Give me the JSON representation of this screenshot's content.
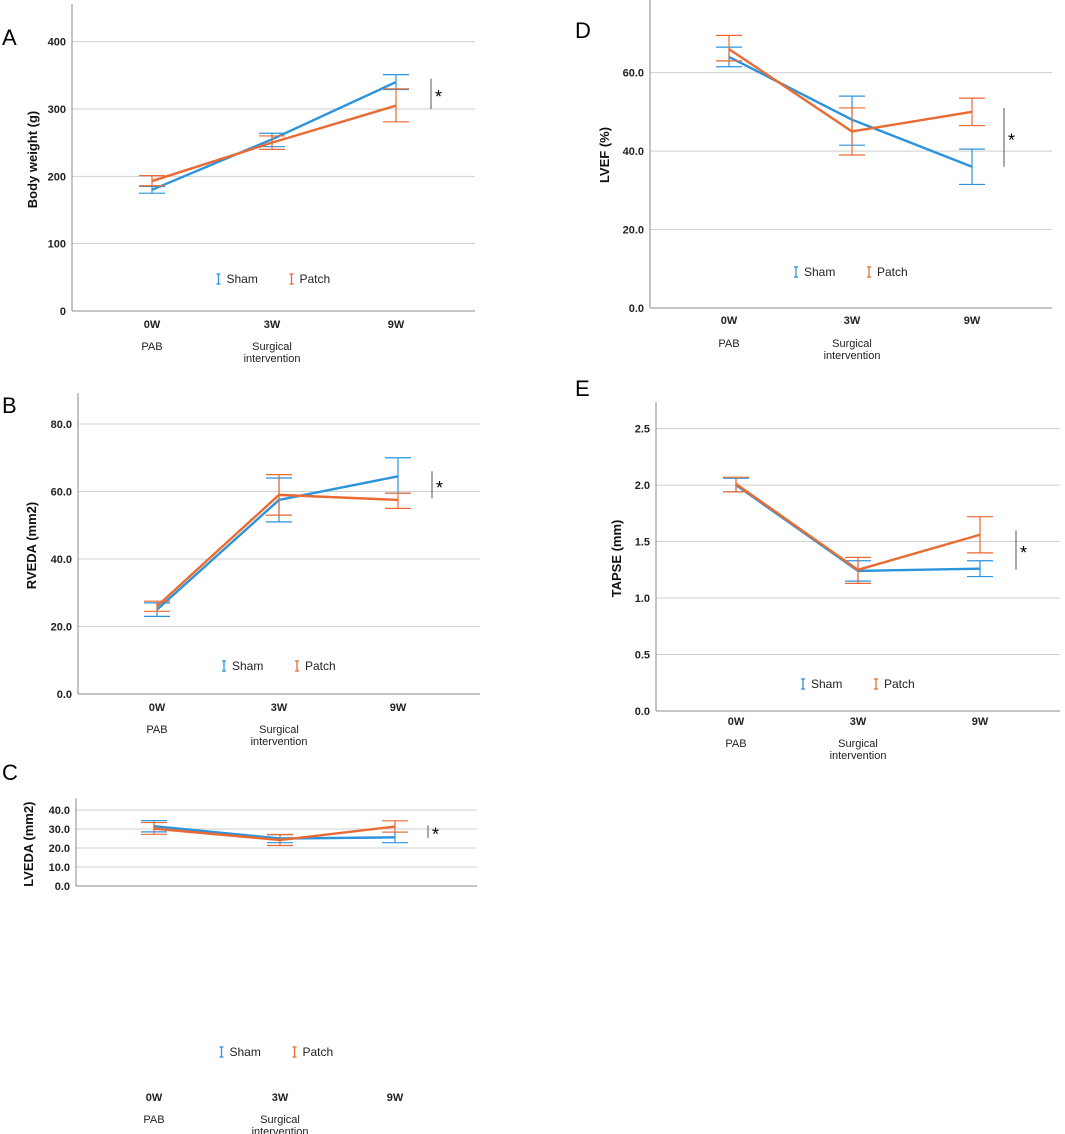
{
  "legend": {
    "sham": "Sham",
    "patch": "Patch",
    "sham_glyph": "I",
    "patch_glyph": "I"
  },
  "colors": {
    "sham": "#2b94dc",
    "patch": "#ea6a33",
    "grid": "#cfcfcf",
    "axis": "#8a8a8a"
  },
  "x_labels": [
    "0W",
    "3W",
    "9W"
  ],
  "x_sublabels": [
    "PAB",
    "Surgical\nintervention",
    ""
  ],
  "significance": "*",
  "chart_data": [
    {
      "panel": "A",
      "type": "line",
      "ylabel": "Body weight (g)",
      "categories": [
        "0W",
        "3W",
        "9W"
      ],
      "ylim": [
        0,
        450
      ],
      "yticks": [
        0,
        100,
        200,
        300,
        400
      ],
      "ytick_labels": [
        "0",
        "100",
        "200",
        "300",
        "400"
      ],
      "series": [
        {
          "name": "Sham",
          "values": [
            180,
            255,
            340
          ],
          "err_low": [
            175,
            244,
            329
          ],
          "err_high": [
            185,
            264,
            351
          ]
        },
        {
          "name": "Patch",
          "values": [
            193,
            250,
            305
          ],
          "err_low": [
            186,
            240,
            281
          ],
          "err_high": [
            201,
            260,
            330
          ]
        }
      ],
      "significance_range": [
        300,
        345
      ]
    },
    {
      "panel": "B",
      "type": "line",
      "ylabel": "RVEDA (mm2)",
      "categories": [
        "0W",
        "3W",
        "9W"
      ],
      "ylim": [
        0,
        88
      ],
      "yticks": [
        0,
        20,
        40,
        60,
        80
      ],
      "ytick_labels": [
        "0.0",
        "20.0",
        "40.0",
        "60.0",
        "80.0"
      ],
      "series": [
        {
          "name": "Sham",
          "values": [
            25,
            57.5,
            64.5
          ],
          "err_low": [
            23,
            51,
            59.5
          ],
          "err_high": [
            27,
            64,
            70
          ]
        },
        {
          "name": "Patch",
          "values": [
            26,
            59,
            57.5
          ],
          "err_low": [
            24.5,
            53,
            55
          ],
          "err_high": [
            27.5,
            65,
            59.5
          ]
        }
      ],
      "significance_range": [
        58,
        66
      ]
    },
    {
      "panel": "C",
      "type": "line",
      "ylabel": "LVEDA (mm2)",
      "categories": [
        "0W",
        "3W",
        "9W"
      ],
      "ylim": [
        0,
        44
      ],
      "yticks": [
        0,
        10,
        20,
        30,
        40
      ],
      "ytick_labels": [
        "0.0",
        "10.0",
        "20.0",
        "30.0",
        "40.0"
      ],
      "series": [
        {
          "name": "Sham",
          "values": [
            31.5,
            25,
            25.6
          ],
          "err_low": [
            28.5,
            22.8,
            22.8
          ],
          "err_high": [
            34.4,
            27,
            28.4
          ]
        },
        {
          "name": "Patch",
          "values": [
            30.2,
            24.2,
            31.3
          ],
          "err_low": [
            27.2,
            21.3,
            28.4
          ],
          "err_high": [
            33.4,
            27.1,
            34.3
          ]
        }
      ],
      "significance_range": [
        25.3,
        32
      ]
    },
    {
      "panel": "D",
      "type": "line",
      "ylabel": "LVEF (%)",
      "categories": [
        "0W",
        "3W",
        "9W"
      ],
      "ylim": [
        0,
        78
      ],
      "yticks": [
        0,
        20,
        40,
        60
      ],
      "ytick_labels": [
        "0.0",
        "20.0",
        "40.0",
        "60.0"
      ],
      "series": [
        {
          "name": "Sham",
          "values": [
            64,
            48,
            36
          ],
          "err_low": [
            61.5,
            41.5,
            31.5
          ],
          "err_high": [
            66.5,
            54,
            40.5
          ]
        },
        {
          "name": "Patch",
          "values": [
            66,
            45,
            50
          ],
          "err_low": [
            63,
            39,
            46.5
          ],
          "err_high": [
            69.5,
            51,
            53.5
          ]
        }
      ],
      "significance_range": [
        36,
        51
      ]
    },
    {
      "panel": "E",
      "type": "line",
      "ylabel": "TAPSE (mm)",
      "categories": [
        "0W",
        "3W",
        "9W"
      ],
      "ylim": [
        0,
        2.7
      ],
      "yticks": [
        0,
        0.5,
        1.0,
        1.5,
        2.0,
        2.5
      ],
      "ytick_labels": [
        "0.0",
        "0.5",
        "1.0",
        "1.5",
        "2.0",
        "2.5"
      ],
      "series": [
        {
          "name": "Sham",
          "values": [
            2.0,
            1.24,
            1.26
          ],
          "err_low": [
            1.94,
            1.15,
            1.19
          ],
          "err_high": [
            2.06,
            1.33,
            1.33
          ]
        },
        {
          "name": "Patch",
          "values": [
            2.01,
            1.25,
            1.56
          ],
          "err_low": [
            1.94,
            1.13,
            1.4
          ],
          "err_high": [
            2.07,
            1.36,
            1.72
          ]
        }
      ],
      "significance_range": [
        1.25,
        1.6
      ]
    }
  ]
}
